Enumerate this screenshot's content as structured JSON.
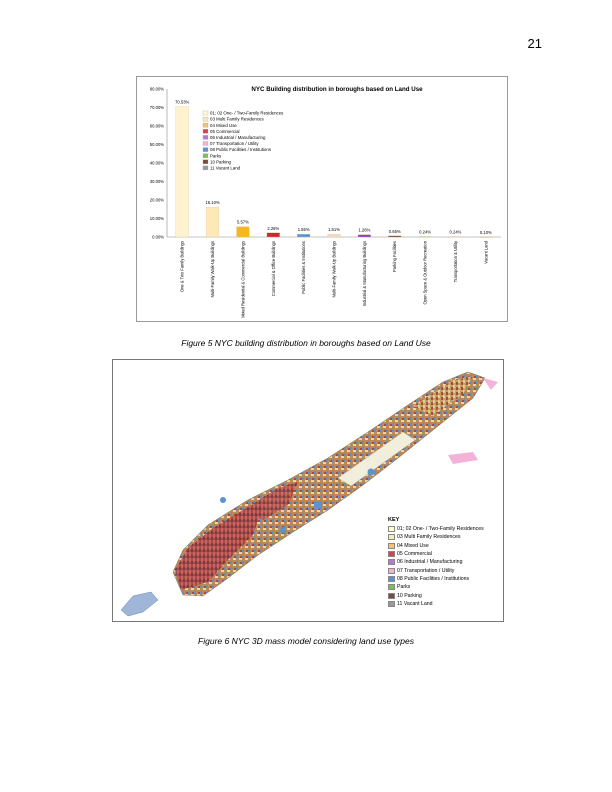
{
  "page_number": "21",
  "figure5": {
    "caption": "Figure 5 NYC building distribution in boroughs based on Land Use"
  },
  "figure6": {
    "caption": "Figure 6 NYC 3D mass model considering land use types",
    "key": {
      "title": "KEY",
      "items": [
        {
          "label": "01; 02 One- / Two-Family Residences",
          "color": "#fffbd6"
        },
        {
          "label": "03 Multi Family Residences",
          "color": "#fde9b8"
        },
        {
          "label": "04 Mixed Use",
          "color": "#f6c36a"
        },
        {
          "label": "05 Commercial",
          "color": "#d6434f"
        },
        {
          "label": "06 Industrial / Manufacturing",
          "color": "#b479d6"
        },
        {
          "label": "07 Transportation / Utility",
          "color": "#f3b2d8"
        },
        {
          "label": "08 Public Facilities / Institutions",
          "color": "#5a93d4"
        },
        {
          "label": "Parks",
          "color": "#7bbf5a"
        },
        {
          "label": "10 Parking",
          "color": "#7a4a3a"
        },
        {
          "label": "11 Vacant Land",
          "color": "#9a9a9a"
        }
      ]
    }
  },
  "chart_data": {
    "type": "bar",
    "title": "NYC Building distribution in boroughs based on Land Use",
    "ylim": [
      0,
      80
    ],
    "yticks": [
      "0.00%",
      "10.00%",
      "20.00%",
      "30.00%",
      "40.00%",
      "50.00%",
      "60.00%",
      "70.00%",
      "80.00%"
    ],
    "grid": false,
    "legend_position": "top-left",
    "categories": [
      "One & Two Family Buildings",
      "Multi-Family Walk-Up Buildings",
      "Mixed Residential & Commercial Buildings",
      "Commercial & Office Buildings",
      "Public Facilities & Institutions",
      "Multi-Family Walk-Up Buildings",
      "Industrial & Manufacturing Buildings",
      "Parking Facilities",
      "Open Space & Outdoor Recreation",
      "Transportation & Utility",
      "Vacant Land"
    ],
    "values": [
      70.53,
      16.1,
      5.57,
      2.28,
      1.55,
      1.51,
      1.26,
      0.65,
      0.24,
      0.24,
      0.1
    ],
    "value_labels": [
      "70.53%",
      "16.10%",
      "5.57%",
      "2.28%",
      "1.55%",
      "1.51%",
      "1.26%",
      "0.65%",
      "0.24%",
      "0.24%",
      "0.10%"
    ],
    "bar_colors": [
      "#fff3cf",
      "#fde9b8",
      "#f6b820",
      "#d6242e",
      "#5a93d4",
      "#f7d9c4",
      "#8e3fbf",
      "#7a4a3a",
      "#7bbf5a",
      "#f3b2d8",
      "#9a9a9a"
    ],
    "legend": [
      {
        "label": "01; 02 One- / Two-Family Residences",
        "color": "#fffbd6"
      },
      {
        "label": "03 Multi Family Residences",
        "color": "#fde9b8"
      },
      {
        "label": "04 Mixed Use",
        "color": "#f6c36a"
      },
      {
        "label": "05 Commercial",
        "color": "#d6434f"
      },
      {
        "label": "06 Industrial / Manufacturing",
        "color": "#b479d6"
      },
      {
        "label": "07 Transportation / Utility",
        "color": "#f3b2d8"
      },
      {
        "label": "08 Public Facilities / Institutions",
        "color": "#5a93d4"
      },
      {
        "label": "Parks",
        "color": "#7bbf5a"
      },
      {
        "label": "10 Parking",
        "color": "#7a4a3a"
      },
      {
        "label": "11 Vacant Land",
        "color": "#9a9a9a"
      }
    ]
  }
}
